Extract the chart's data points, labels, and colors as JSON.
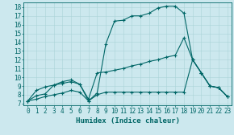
{
  "xlabel": "Humidex (Indice chaleur)",
  "bg_color": "#cce8ee",
  "line_color": "#006666",
  "xlim": [
    -0.5,
    23.5
  ],
  "ylim": [
    6.8,
    18.5
  ],
  "xticks": [
    0,
    1,
    2,
    3,
    4,
    5,
    6,
    7,
    8,
    9,
    10,
    11,
    12,
    13,
    14,
    15,
    16,
    17,
    18,
    19,
    20,
    21,
    22,
    23
  ],
  "yticks": [
    7,
    8,
    9,
    10,
    11,
    12,
    13,
    14,
    15,
    16,
    17,
    18
  ],
  "line1_x": [
    0,
    1,
    2,
    3,
    4,
    5,
    6,
    7,
    8,
    9,
    10,
    11,
    12,
    13,
    14,
    15,
    16,
    17,
    18,
    19,
    20,
    21,
    22,
    23
  ],
  "line1_y": [
    7.3,
    8.5,
    8.9,
    9.1,
    9.3,
    9.5,
    9.2,
    7.3,
    8.2,
    13.8,
    16.4,
    16.5,
    17.0,
    17.0,
    17.3,
    17.9,
    18.1,
    18.1,
    17.3,
    12.0,
    10.5,
    9.0,
    8.8,
    7.8
  ],
  "line2_x": [
    0,
    1,
    2,
    3,
    4,
    5,
    6,
    7,
    8,
    9,
    10,
    11,
    12,
    13,
    14,
    15,
    16,
    17,
    18,
    19,
    20,
    21,
    22,
    23
  ],
  "line2_y": [
    7.3,
    7.5,
    7.8,
    8.0,
    8.2,
    8.5,
    8.3,
    7.3,
    8.0,
    8.3,
    8.3,
    8.3,
    8.3,
    8.3,
    8.3,
    8.3,
    8.3,
    8.3,
    8.3,
    12.0,
    10.5,
    9.0,
    8.8,
    7.8
  ],
  "line3_x": [
    0,
    1,
    2,
    3,
    4,
    5,
    6,
    7,
    8,
    9,
    10,
    11,
    12,
    13,
    14,
    15,
    16,
    17,
    18,
    19,
    20,
    21,
    22,
    23
  ],
  "line3_y": [
    7.3,
    7.9,
    8.1,
    9.1,
    9.5,
    9.7,
    9.2,
    7.5,
    10.5,
    10.6,
    10.8,
    11.0,
    11.3,
    11.5,
    11.8,
    12.0,
    12.3,
    12.5,
    14.5,
    12.0,
    10.5,
    9.0,
    8.8,
    7.8
  ],
  "grid_color": "#aad4d8",
  "tick_fontsize": 5.5,
  "label_fontsize": 6.5
}
